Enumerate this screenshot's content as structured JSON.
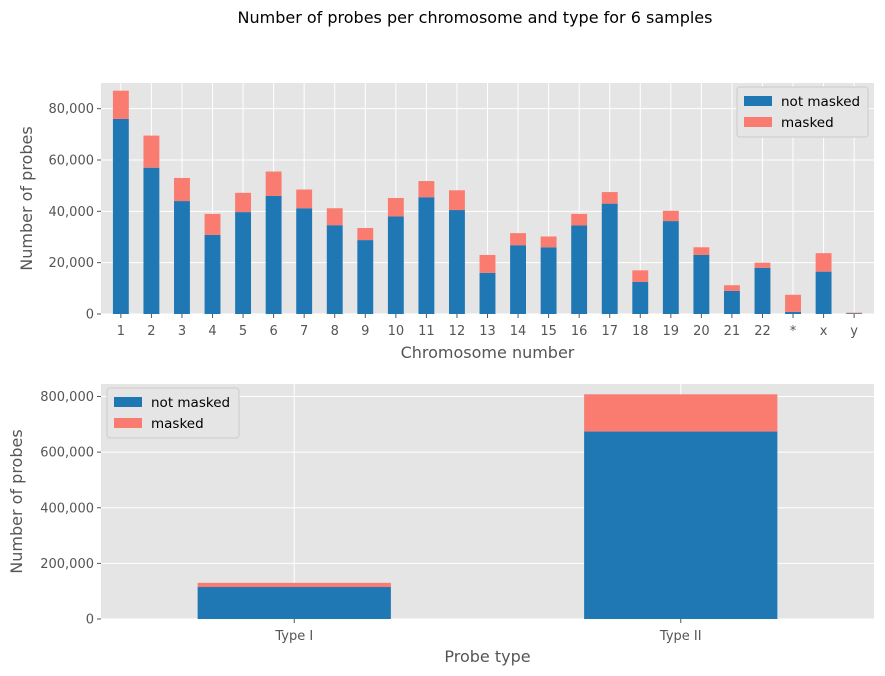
{
  "figure": {
    "title": "Number of probes per chromosome and type for 6 samples"
  },
  "colors": {
    "not_masked": "#1f77b4",
    "masked": "#fa7b6f",
    "axes_background": "#e5e5e5",
    "grid": "#ffffff"
  },
  "chart_data": [
    {
      "type": "bar",
      "stacked": true,
      "title": "",
      "xlabel": "Chromosome number",
      "ylabel": "Number of probes",
      "categories": [
        "1",
        "2",
        "3",
        "4",
        "5",
        "6",
        "7",
        "8",
        "9",
        "10",
        "11",
        "12",
        "13",
        "14",
        "15",
        "16",
        "17",
        "18",
        "19",
        "20",
        "21",
        "22",
        "*",
        "x",
        "y"
      ],
      "series": [
        {
          "name": "not masked",
          "values": [
            76000,
            57000,
            44000,
            30800,
            39700,
            46000,
            41200,
            34600,
            28800,
            38000,
            45500,
            40500,
            16000,
            26800,
            26000,
            34500,
            43000,
            12500,
            36200,
            23000,
            9000,
            18000,
            800,
            16500,
            200
          ]
        },
        {
          "name": "masked",
          "values": [
            11000,
            12500,
            9000,
            8200,
            7500,
            9500,
            7300,
            6600,
            4700,
            7200,
            6300,
            7700,
            7000,
            4700,
            4200,
            4500,
            4500,
            4500,
            4000,
            3000,
            2200,
            2000,
            6700,
            7200,
            300
          ]
        }
      ],
      "ylim": [
        0,
        90000
      ],
      "yticks": [
        0,
        20000,
        40000,
        60000,
        80000
      ],
      "ytick_labels": [
        "0",
        "20,000",
        "40,000",
        "60,000",
        "80,000"
      ],
      "grid": true,
      "legend_position": "top-right"
    },
    {
      "type": "bar",
      "stacked": true,
      "title": "",
      "xlabel": "Probe type",
      "ylabel": "Number of probes",
      "categories": [
        "Type I",
        "Type II"
      ],
      "series": [
        {
          "name": "not masked",
          "values": [
            115000,
            674000
          ]
        },
        {
          "name": "masked",
          "values": [
            15000,
            134000
          ]
        }
      ],
      "ylim": [
        0,
        845000
      ],
      "yticks": [
        0,
        200000,
        400000,
        600000,
        800000
      ],
      "ytick_labels": [
        "0",
        "200,000",
        "400,000",
        "600,000",
        "800,000"
      ],
      "grid": true,
      "legend_position": "top-left"
    }
  ]
}
